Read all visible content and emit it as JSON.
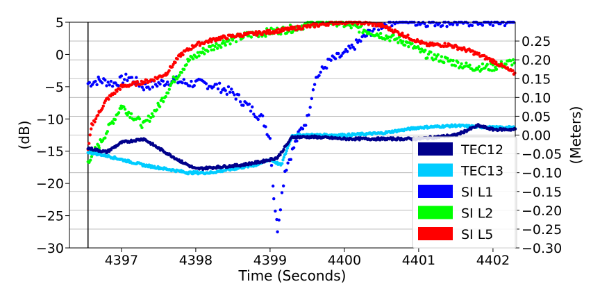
{
  "chart_data": {
    "type": "scatter",
    "xlabel": "Time (Seconds)",
    "ylabel_left": "(dB)",
    "ylabel_right": "(Meters)",
    "xlim": [
      4396.3,
      4402.3
    ],
    "ylim_left": [
      -30,
      5
    ],
    "ylim_right": [
      -0.3,
      0.3
    ],
    "x_ticks": [
      4397,
      4398,
      4399,
      4400,
      4401,
      4402
    ],
    "y_ticks_left": [
      5,
      0,
      -5,
      -10,
      -15,
      -20,
      -25,
      -30
    ],
    "y_ticks_right": [
      0.25,
      0.2,
      0.15,
      0.1,
      0.05,
      0.0,
      -0.05,
      -0.1,
      -0.15,
      -0.2,
      -0.25,
      -0.3
    ],
    "y_tick_labels_right": [
      "0.25",
      "0.20",
      "0.15",
      "0.10",
      "0.05",
      "0.00",
      "−0.05",
      "−0.10",
      "−0.15",
      "−0.20",
      "−0.25",
      "−0.30"
    ],
    "grid": "horizontal-right-axis",
    "vertical_marker_x": 4396.55,
    "legend_position": "lower-right",
    "series": [
      {
        "name": "TEC12",
        "axis": "right",
        "color": "#00008b",
        "x": [
          4396.55,
          4396.8,
          4397.0,
          4397.3,
          4397.5,
          4397.8,
          4398.0,
          4398.3,
          4398.6,
          4398.9,
          4399.1,
          4399.3,
          4399.6,
          4400.0,
          4400.5,
          4401.0,
          4401.5,
          4401.8,
          4402.0,
          4402.3
        ],
        "y": [
          -0.035,
          -0.045,
          -0.02,
          -0.01,
          -0.035,
          -0.07,
          -0.09,
          -0.085,
          -0.08,
          -0.07,
          -0.06,
          -0.005,
          -0.005,
          -0.01,
          -0.01,
          -0.01,
          0.0,
          0.025,
          0.015,
          0.015
        ]
      },
      {
        "name": "TEC13",
        "axis": "right",
        "color": "#00ccff",
        "x": [
          4396.55,
          4396.8,
          4397.0,
          4397.3,
          4397.6,
          4397.9,
          4398.2,
          4398.5,
          4398.8,
          4399.0,
          4399.15,
          4399.3,
          4399.6,
          4400.0,
          4400.5,
          4401.0,
          4401.5,
          4402.0,
          4402.3
        ],
        "y": [
          -0.045,
          -0.055,
          -0.065,
          -0.08,
          -0.09,
          -0.1,
          -0.1,
          -0.09,
          -0.08,
          -0.065,
          -0.08,
          0.0,
          0.0,
          0.0,
          0.005,
          0.02,
          0.025,
          0.02,
          0.02
        ]
      },
      {
        "name": "SI L1",
        "axis": "left",
        "color": "#0000ff",
        "x": [
          4396.55,
          4396.7,
          4396.9,
          4397.1,
          4397.3,
          4397.5,
          4397.7,
          4397.9,
          4398.1,
          4398.3,
          4398.5,
          4398.7,
          4398.9,
          4399.0,
          4399.05,
          4399.1,
          4399.2,
          4399.3,
          4399.4,
          4399.5,
          4399.6,
          4399.8,
          4400.0,
          4400.2,
          4400.4,
          4400.6,
          4400.8,
          4401.0,
          4401.3,
          4401.6,
          4402.0,
          4402.3
        ],
        "y": [
          -4.5,
          -4,
          -4.5,
          -3.5,
          -5,
          -4.5,
          -4,
          -4.5,
          -4.5,
          -5,
          -6,
          -8,
          -10,
          -13,
          -22,
          -27,
          -18,
          -15,
          -12,
          -10,
          -4,
          -1,
          0,
          2,
          4,
          5,
          5.5,
          5,
          5,
          5,
          5,
          5
        ]
      },
      {
        "name": "SI L2",
        "axis": "left",
        "color": "#00ff00",
        "x": [
          4396.55,
          4396.7,
          4396.9,
          4397.0,
          4397.1,
          4397.3,
          4397.5,
          4397.7,
          4397.9,
          4398.1,
          4398.4,
          4398.7,
          4399.0,
          4399.3,
          4399.6,
          4399.9,
          4400.2,
          4400.5,
          4400.8,
          4401.1,
          4401.4,
          4401.7,
          4402.0,
          4402.3
        ],
        "y": [
          -16.5,
          -14,
          -10,
          -8,
          -9,
          -11,
          -8,
          -4,
          -1,
          0.5,
          2,
          3,
          3.5,
          4,
          5,
          5,
          4,
          3,
          2,
          0,
          -1,
          -2,
          -2,
          -1
        ]
      },
      {
        "name": "SI L5",
        "axis": "left",
        "color": "#ff0000",
        "x": [
          4396.55,
          4396.6,
          4396.7,
          4396.8,
          4397.0,
          4397.2,
          4397.4,
          4397.6,
          4397.8,
          4398.0,
          4398.3,
          4398.6,
          4399.0,
          4399.3,
          4399.6,
          4399.9,
          4400.2,
          4400.5,
          4400.8,
          4401.1,
          4401.4,
          4401.7,
          4402.0,
          4402.3
        ],
        "y": [
          -15,
          -11,
          -9,
          -7,
          -5,
          -4.5,
          -4,
          -3,
          0,
          1.5,
          2.5,
          3,
          3.5,
          4,
          4.5,
          5,
          5,
          4.5,
          3,
          1.5,
          1.5,
          0.5,
          -1,
          -3
        ]
      }
    ]
  }
}
